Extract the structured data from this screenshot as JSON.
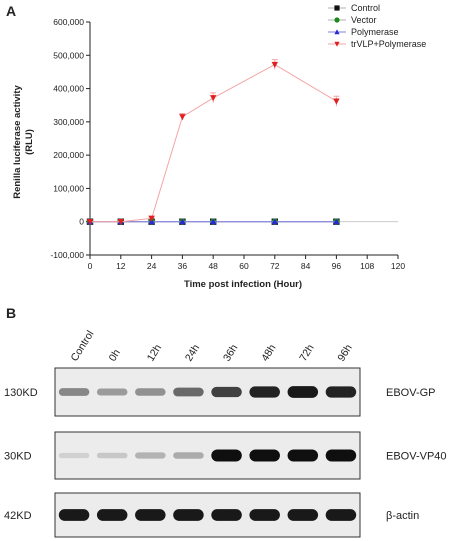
{
  "panels": {
    "a_label": "A",
    "b_label": "B"
  },
  "chart_data": {
    "type": "line",
    "title": "",
    "xlabel": "Time post infection (Hour)",
    "ylabel_line1": "Renilla luciferase activity",
    "ylabel_line2": "(RLU)",
    "xlim": [
      0,
      120
    ],
    "ylim": [
      -100000,
      600000
    ],
    "x_ticks": [
      0,
      12,
      24,
      36,
      48,
      60,
      72,
      84,
      96,
      108,
      120
    ],
    "y_ticks": [
      -100000,
      0,
      100000,
      200000,
      300000,
      400000,
      500000,
      600000
    ],
    "y_tick_labels": [
      "-100,000",
      "0",
      "100,000",
      "200,000",
      "300,000",
      "400,000",
      "500,000",
      "600,000"
    ],
    "grid": false,
    "legend_position": "top-right",
    "x": [
      0,
      12,
      24,
      36,
      48,
      72,
      96
    ],
    "series": [
      {
        "name": "Control",
        "marker": "square",
        "color": "#111111",
        "line_color": "#b0b0b0",
        "values": [
          0,
          0,
          0,
          0,
          0,
          0,
          0
        ],
        "errors": [
          0,
          0,
          0,
          0,
          0,
          0,
          0
        ]
      },
      {
        "name": "Vector",
        "marker": "circle",
        "color": "#1e8a1e",
        "line_color": "#b0b0b0",
        "values": [
          0,
          0,
          0,
          0,
          0,
          0,
          0
        ],
        "errors": [
          0,
          0,
          0,
          0,
          0,
          0,
          0
        ]
      },
      {
        "name": "Polymerase",
        "marker": "triangle-up",
        "color": "#2a2ad0",
        "line_color": "#7f7fe6",
        "values": [
          0,
          0,
          0,
          0,
          0,
          0,
          0
        ],
        "errors": [
          0,
          0,
          0,
          0,
          0,
          0,
          0
        ]
      },
      {
        "name": "trVLP+Polymerase",
        "marker": "triangle-down",
        "color": "#e02020",
        "line_color": "#f5a5a5",
        "values": [
          0,
          0,
          10000,
          315000,
          372000,
          472000,
          362000
        ],
        "errors": [
          0,
          0,
          4000,
          10000,
          15000,
          15000,
          15000
        ]
      }
    ]
  },
  "blot": {
    "lanes": [
      "Control",
      "0h",
      "12h",
      "24h",
      "36h",
      "48h",
      "72h",
      "96h"
    ],
    "rows": [
      {
        "mw": "130KD",
        "protein": "EBOV-GP",
        "intensities": [
          0.4,
          0.3,
          0.35,
          0.55,
          0.75,
          0.9,
          0.95,
          0.9
        ]
      },
      {
        "mw": "30KD",
        "protein": "EBOV-VP40",
        "intensities": [
          0.03,
          0.08,
          0.18,
          0.22,
          1.0,
          1.0,
          1.0,
          1.0
        ]
      },
      {
        "mw": "42KD",
        "protein": "β-actin",
        "intensities": [
          0.95,
          0.95,
          0.95,
          0.95,
          0.95,
          0.95,
          0.95,
          0.95
        ]
      }
    ]
  }
}
